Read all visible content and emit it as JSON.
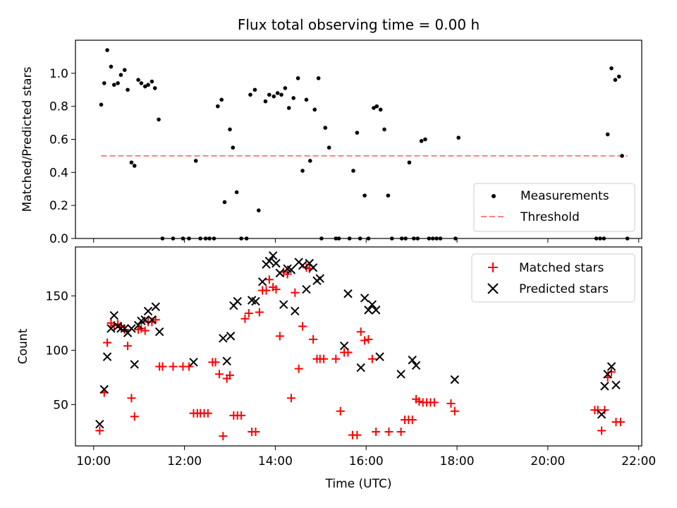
{
  "colors": {
    "measurements": "#000000",
    "threshold": "#ff7f7f",
    "matched": "#ff0000",
    "predicted": "#000000"
  },
  "chart_data": [
    {
      "type": "scatter",
      "title": "Flux total observing time = 0.00 h",
      "xlabel": "",
      "ylabel": "Matched/Predicted stars",
      "xlim": [
        "09:36",
        "22:04"
      ],
      "ylim": [
        0,
        1.2
      ],
      "yticks": [
        "0.0",
        "0.2",
        "0.4",
        "0.6",
        "0.8",
        "1.0"
      ],
      "grid": false,
      "legend_position": "lower right",
      "series": [
        {
          "name": "Measurements",
          "marker": "dot",
          "points": [
            [
              "10:10",
              0.81
            ],
            [
              "10:14",
              0.94
            ],
            [
              "10:18",
              1.14
            ],
            [
              "10:23",
              1.04
            ],
            [
              "10:27",
              0.93
            ],
            [
              "10:32",
              0.94
            ],
            [
              "10:36",
              0.99
            ],
            [
              "10:41",
              1.02
            ],
            [
              "10:45",
              0.9
            ],
            [
              "10:50",
              0.46
            ],
            [
              "10:54",
              0.44
            ],
            [
              "10:59",
              0.96
            ],
            [
              "11:03",
              0.94
            ],
            [
              "11:08",
              0.92
            ],
            [
              "11:12",
              0.93
            ],
            [
              "11:17",
              0.95
            ],
            [
              "11:21",
              0.91
            ],
            [
              "11:26",
              0.72
            ],
            [
              "11:31",
              0.0
            ],
            [
              "11:45",
              0.0
            ],
            [
              "11:58",
              0.0
            ],
            [
              "12:06",
              0.0
            ],
            [
              "12:15",
              0.47
            ],
            [
              "12:21",
              0.0
            ],
            [
              "12:28",
              0.0
            ],
            [
              "12:33",
              0.0
            ],
            [
              "12:39",
              0.0
            ],
            [
              "12:44",
              0.8
            ],
            [
              "12:49",
              0.84
            ],
            [
              "12:53",
              0.22
            ],
            [
              "13:00",
              0.66
            ],
            [
              "13:04",
              0.55
            ],
            [
              "13:09",
              0.28
            ],
            [
              "13:15",
              0.0
            ],
            [
              "13:22",
              0.0
            ],
            [
              "13:27",
              0.87
            ],
            [
              "13:33",
              0.9
            ],
            [
              "13:38",
              0.17
            ],
            [
              "13:47",
              0.83
            ],
            [
              "13:52",
              0.87
            ],
            [
              "13:58",
              0.86
            ],
            [
              "14:03",
              0.88
            ],
            [
              "14:08",
              0.87
            ],
            [
              "14:13",
              0.91
            ],
            [
              "14:18",
              0.79
            ],
            [
              "14:24",
              0.85
            ],
            [
              "14:30",
              0.97
            ],
            [
              "14:36",
              0.41
            ],
            [
              "14:41",
              0.84
            ],
            [
              "14:46",
              0.47
            ],
            [
              "14:52",
              0.78
            ],
            [
              "14:57",
              0.97
            ],
            [
              "15:01",
              0.0
            ],
            [
              "15:06",
              0.67
            ],
            [
              "15:11",
              0.55
            ],
            [
              "15:20",
              0.0
            ],
            [
              "15:24",
              0.0
            ],
            [
              "15:38",
              0.0
            ],
            [
              "15:43",
              0.41
            ],
            [
              "15:48",
              0.64
            ],
            [
              "15:52",
              0.0
            ],
            [
              "15:58",
              0.26
            ],
            [
              "16:03",
              0.0
            ],
            [
              "16:10",
              0.79
            ],
            [
              "16:14",
              0.8
            ],
            [
              "16:19",
              0.78
            ],
            [
              "16:24",
              0.66
            ],
            [
              "16:29",
              0.26
            ],
            [
              "16:34",
              0.0
            ],
            [
              "16:47",
              0.0
            ],
            [
              "16:52",
              0.0
            ],
            [
              "16:57",
              0.46
            ],
            [
              "17:03",
              0.0
            ],
            [
              "17:08",
              0.0
            ],
            [
              "17:13",
              0.59
            ],
            [
              "17:18",
              0.6
            ],
            [
              "17:23",
              0.0
            ],
            [
              "17:28",
              0.0
            ],
            [
              "17:33",
              0.0
            ],
            [
              "17:38",
              0.0
            ],
            [
              "17:58",
              0.0
            ],
            [
              "18:02",
              0.61
            ],
            [
              "21:04",
              0.0
            ],
            [
              "21:09",
              0.0
            ],
            [
              "21:14",
              0.0
            ],
            [
              "21:19",
              0.63
            ],
            [
              "21:24",
              1.03
            ],
            [
              "21:29",
              0.96
            ],
            [
              "21:34",
              0.98
            ],
            [
              "21:38",
              0.5
            ],
            [
              "21:45",
              0.0
            ]
          ]
        },
        {
          "name": "Threshold",
          "marker": "dashed-line",
          "points": [
            [
              "10:10",
              0.5
            ],
            [
              "21:45",
              0.5
            ]
          ]
        }
      ]
    },
    {
      "type": "scatter",
      "title": "",
      "xlabel": "Time (UTC)",
      "ylabel": "Count",
      "xlim": [
        "09:36",
        "22:04"
      ],
      "ylim": [
        12,
        195
      ],
      "xticks": [
        "10:00",
        "12:00",
        "14:00",
        "16:00",
        "18:00",
        "20:00",
        "22:00"
      ],
      "yticks": [
        "50",
        "100",
        "150"
      ],
      "grid": false,
      "legend_position": "upper right",
      "series": [
        {
          "name": "Matched stars",
          "marker": "plus",
          "points": [
            [
              "10:08",
              26
            ],
            [
              "10:14",
              61
            ],
            [
              "10:18",
              107
            ],
            [
              "10:23",
              125
            ],
            [
              "10:27",
              123
            ],
            [
              "10:32",
              124
            ],
            [
              "10:36",
              122
            ],
            [
              "10:41",
              119
            ],
            [
              "10:45",
              104
            ],
            [
              "10:50",
              56
            ],
            [
              "10:54",
              39
            ],
            [
              "10:59",
              119
            ],
            [
              "11:03",
              120
            ],
            [
              "11:08",
              118
            ],
            [
              "11:12",
              126
            ],
            [
              "11:17",
              126
            ],
            [
              "11:22",
              128
            ],
            [
              "11:27",
              85
            ],
            [
              "11:31",
              85
            ],
            [
              "11:45",
              85
            ],
            [
              "11:58",
              85
            ],
            [
              "12:06",
              85
            ],
            [
              "12:12",
              42
            ],
            [
              "12:17",
              42
            ],
            [
              "12:21",
              42
            ],
            [
              "12:26",
              42
            ],
            [
              "12:31",
              42
            ],
            [
              "12:37",
              89
            ],
            [
              "12:41",
              89
            ],
            [
              "12:46",
              78
            ],
            [
              "12:51",
              21
            ],
            [
              "12:56",
              74
            ],
            [
              "13:00",
              77
            ],
            [
              "13:05",
              40
            ],
            [
              "13:10",
              40
            ],
            [
              "13:15",
              40
            ],
            [
              "13:20",
              129
            ],
            [
              "13:25",
              134
            ],
            [
              "13:29",
              25
            ],
            [
              "13:34",
              25
            ],
            [
              "13:39",
              135
            ],
            [
              "13:43",
              155
            ],
            [
              "13:48",
              155
            ],
            [
              "13:52",
              165
            ],
            [
              "13:57",
              158
            ],
            [
              "14:01",
              156
            ],
            [
              "14:06",
              113
            ],
            [
              "14:11",
              172
            ],
            [
              "14:16",
              170
            ],
            [
              "14:21",
              56
            ],
            [
              "14:26",
              153
            ],
            [
              "14:31",
              83
            ],
            [
              "14:36",
              122
            ],
            [
              "14:41",
              176
            ],
            [
              "14:45",
              175
            ],
            [
              "14:50",
              110
            ],
            [
              "14:55",
              92
            ],
            [
              "14:59",
              92
            ],
            [
              "15:04",
              92
            ],
            [
              "15:20",
              92
            ],
            [
              "15:26",
              44
            ],
            [
              "15:31",
              98
            ],
            [
              "15:36",
              98
            ],
            [
              "15:42",
              22
            ],
            [
              "15:48",
              22
            ],
            [
              "15:53",
              117
            ],
            [
              "15:58",
              109
            ],
            [
              "16:03",
              110
            ],
            [
              "16:08",
              92
            ],
            [
              "16:13",
              25
            ],
            [
              "16:30",
              25
            ],
            [
              "16:46",
              25
            ],
            [
              "16:51",
              36
            ],
            [
              "16:56",
              36
            ],
            [
              "17:01",
              36
            ],
            [
              "17:06",
              55
            ],
            [
              "17:10",
              53
            ],
            [
              "17:15",
              52
            ],
            [
              "17:20",
              52
            ],
            [
              "17:25",
              52
            ],
            [
              "17:30",
              52
            ],
            [
              "17:52",
              51
            ],
            [
              "17:57",
              44
            ],
            [
              "21:02",
              45
            ],
            [
              "21:06",
              45
            ],
            [
              "21:11",
              26
            ],
            [
              "21:15",
              45
            ],
            [
              "21:19",
              75
            ],
            [
              "21:24",
              80
            ],
            [
              "21:30",
              34
            ],
            [
              "21:36",
              34
            ]
          ]
        },
        {
          "name": "Predicted stars",
          "marker": "x",
          "points": [
            [
              "10:08",
              32
            ],
            [
              "10:14",
              64
            ],
            [
              "10:18",
              94
            ],
            [
              "10:23",
              120
            ],
            [
              "10:27",
              132
            ],
            [
              "10:32",
              122
            ],
            [
              "10:36",
              120
            ],
            [
              "10:41",
              120
            ],
            [
              "10:45",
              116
            ],
            [
              "10:50",
              120
            ],
            [
              "10:54",
              87
            ],
            [
              "10:59",
              123
            ],
            [
              "11:03",
              127
            ],
            [
              "11:08",
              128
            ],
            [
              "11:12",
              136
            ],
            [
              "11:17",
              128
            ],
            [
              "11:22",
              140
            ],
            [
              "11:27",
              117
            ],
            [
              "12:12",
              89
            ],
            [
              "12:51",
              111
            ],
            [
              "12:56",
              90
            ],
            [
              "13:01",
              113
            ],
            [
              "13:05",
              141
            ],
            [
              "13:10",
              145
            ],
            [
              "13:29",
              146
            ],
            [
              "13:34",
              145
            ],
            [
              "13:43",
              163
            ],
            [
              "13:48",
              179
            ],
            [
              "13:52",
              182
            ],
            [
              "13:57",
              187
            ],
            [
              "14:01",
              180
            ],
            [
              "14:06",
              171
            ],
            [
              "14:11",
              142
            ],
            [
              "14:16",
              175
            ],
            [
              "14:21",
              174
            ],
            [
              "14:26",
              136
            ],
            [
              "14:31",
              181
            ],
            [
              "14:36",
              178
            ],
            [
              "14:41",
              156
            ],
            [
              "14:45",
              180
            ],
            [
              "14:50",
              176
            ],
            [
              "14:55",
              164
            ],
            [
              "14:59",
              166
            ],
            [
              "15:31",
              104
            ],
            [
              "15:36",
              152
            ],
            [
              "15:53",
              84
            ],
            [
              "15:58",
              148
            ],
            [
              "16:03",
              137
            ],
            [
              "16:08",
              142
            ],
            [
              "16:13",
              137
            ],
            [
              "16:18",
              94
            ],
            [
              "16:46",
              78
            ],
            [
              "17:01",
              91
            ],
            [
              "17:06",
              86
            ],
            [
              "17:57",
              73
            ],
            [
              "21:11",
              41
            ],
            [
              "21:15",
              67
            ],
            [
              "21:19",
              78
            ],
            [
              "21:24",
              85
            ],
            [
              "21:30",
              68
            ]
          ]
        }
      ]
    }
  ]
}
